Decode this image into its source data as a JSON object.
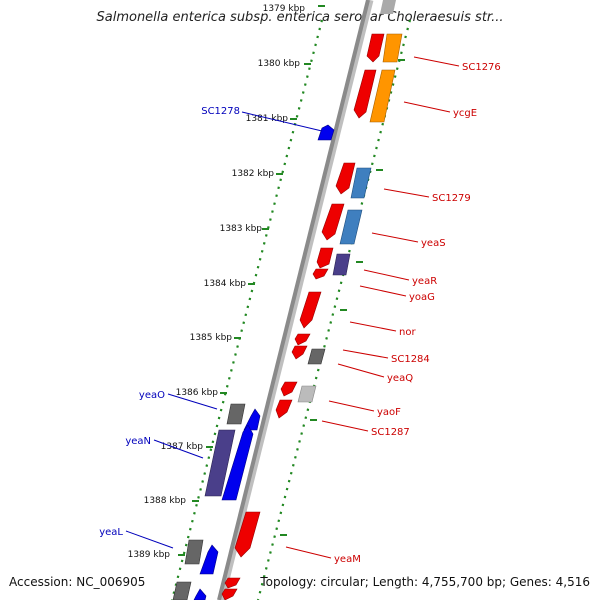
{
  "title": "Salmonella enterica subsp. enterica serovar Choleraesuis str...",
  "accession": "Accession: NC_006905",
  "summary": "Topology: circular; Length: 4,755,700 bp; Genes: 4,516",
  "colors": {
    "forward_cds": "#0000ee",
    "forward_long": "#4a3f8a",
    "reverse_cds": "#ee0000",
    "reverse_orange": "#ff9500",
    "reverse_blue": "#3f7fbf",
    "reverse_purple": "#4a3f8a",
    "gray": "#666666",
    "light_gray": "#bbbbbb",
    "backbone": "#8a8a8a",
    "scale_dots": "#228822",
    "label_left": "#0000bb",
    "label_right": "#cc0000"
  },
  "kbp_ticks": [
    "1379 kbp",
    "1380 kbp",
    "1381 kbp",
    "1382 kbp",
    "1383 kbp",
    "1384 kbp",
    "1385 kbp",
    "1386 kbp",
    "1387 kbp",
    "1388 kbp",
    "1389 kbp"
  ],
  "left_labels": [
    "SC1278",
    "yeaO",
    "yeaN",
    "yeaL"
  ],
  "right_labels": [
    "SC1276",
    "ycgE",
    "SC1279",
    "yeaS",
    "yeaR",
    "yoaG",
    "nor",
    "SC1284",
    "yeaQ",
    "yaoF",
    "SC1287",
    "yeaM"
  ]
}
